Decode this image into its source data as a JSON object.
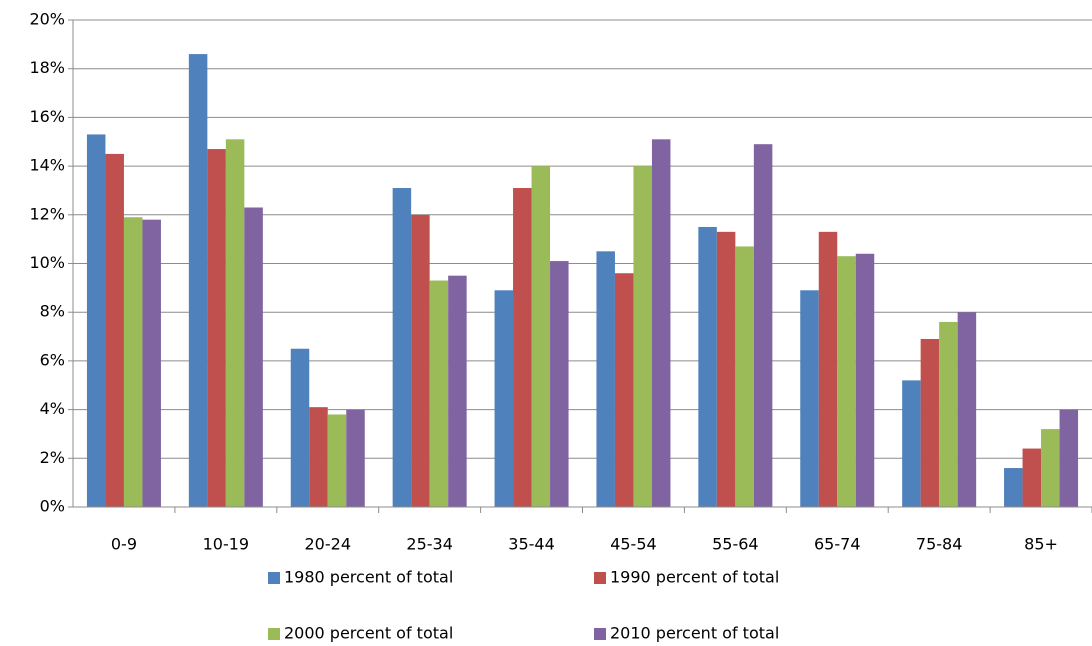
{
  "chart_data": {
    "type": "bar",
    "categories": [
      "0-9",
      "10-19",
      "20-24",
      "25-34",
      "35-44",
      "45-54",
      "55-64",
      "65-74",
      "75-84",
      "85+"
    ],
    "series": [
      {
        "name": "1980 percent of total",
        "color": "#4f81bd",
        "values": [
          15.3,
          18.6,
          6.5,
          13.1,
          8.9,
          10.5,
          11.5,
          8.9,
          5.2,
          1.6
        ]
      },
      {
        "name": "1990 percent of total",
        "color": "#c0504d",
        "values": [
          14.5,
          14.7,
          4.1,
          12.0,
          13.1,
          9.6,
          11.3,
          11.3,
          6.9,
          2.4
        ]
      },
      {
        "name": "2000 percent of total",
        "color": "#9bbb59",
        "values": [
          11.9,
          15.1,
          3.8,
          9.3,
          14.0,
          14.0,
          10.7,
          10.3,
          7.6,
          3.2
        ]
      },
      {
        "name": "2010 percent of total",
        "color": "#8064a2",
        "values": [
          11.8,
          12.3,
          4.0,
          9.5,
          10.1,
          15.1,
          14.9,
          10.4,
          8.0,
          4.0
        ]
      }
    ],
    "ylim": [
      0,
      20
    ],
    "yticks": [
      {
        "value": 0,
        "label": "0%"
      },
      {
        "value": 2,
        "label": "2%"
      },
      {
        "value": 4,
        "label": "4%"
      },
      {
        "value": 6,
        "label": "6%"
      },
      {
        "value": 8,
        "label": "8%"
      },
      {
        "value": 10,
        "label": "10%"
      },
      {
        "value": 12,
        "label": "12%"
      },
      {
        "value": 14,
        "label": "14%"
      },
      {
        "value": 16,
        "label": "16%"
      },
      {
        "value": 18,
        "label": "18%"
      },
      {
        "value": 20,
        "label": "20%"
      }
    ],
    "grid": true
  }
}
